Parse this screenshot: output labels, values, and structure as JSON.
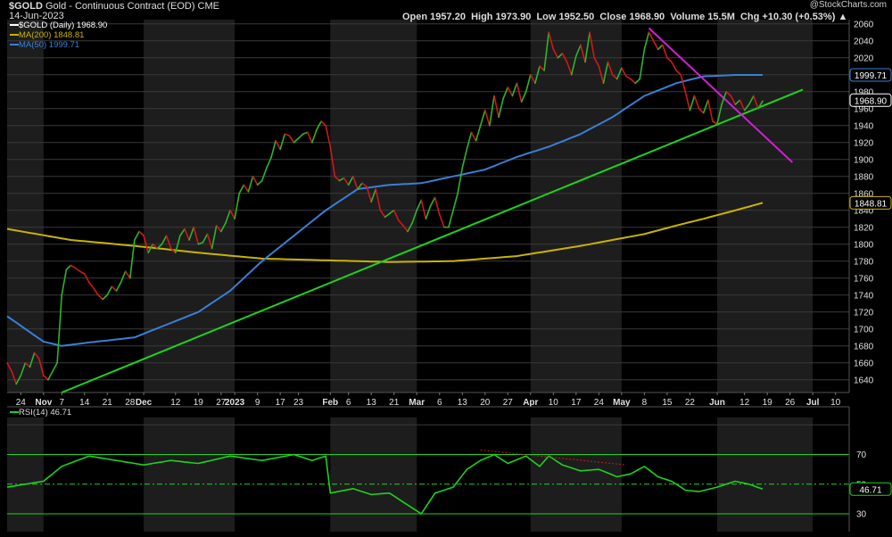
{
  "header": {
    "symbol": "$GOLD",
    "name": "Gold - Continuous Contract (EOD)",
    "exchange": "CME",
    "date": "14-Jun-2023",
    "open": "Open 1957.20",
    "high": "High 1973.90",
    "low": "Low 1952.50",
    "close": "Close 1968.90",
    "volume": "Volume 15.5M",
    "chg": "Chg +10.30 (+0.53%)",
    "chg_icon": "up-arrow-icon",
    "brand": "@StockCharts.com"
  },
  "legend": [
    {
      "text": "$GOLD (Daily) 1968.90",
      "color": "#ffffff"
    },
    {
      "text": "MA(200) 1848.81",
      "color": "#c8b400"
    },
    {
      "text": "MA(50) 1999.71",
      "color": "#3a7fd5"
    }
  ],
  "price_badges": {
    "ma50": "1999.71",
    "close": "1968.90",
    "ma200": "1848.81"
  },
  "rsi": {
    "label": "RSI(14) 46.71",
    "badge": "46.71",
    "ticks": [
      70,
      50,
      30
    ],
    "tick_labels": [
      "70",
      "50",
      "30"
    ]
  },
  "colors": {
    "ma200": "#c8b400",
    "ma50": "#3a7fd5",
    "support": "#1ed21e",
    "resistance": "#d21ed2",
    "up": "#2cb52c",
    "down": "#d01818"
  },
  "chart_data": {
    "type": "line",
    "title": "Gold - Continuous Contract (EOD)",
    "ylim": [
      1625,
      2065
    ],
    "y_ticks": [
      1640,
      1660,
      1680,
      1700,
      1720,
      1740,
      1760,
      1780,
      1800,
      1820,
      1840,
      1860,
      1880,
      1900,
      1920,
      1940,
      1960,
      1980,
      2000,
      2020,
      2040,
      2060
    ],
    "x_ticks": [
      {
        "label": "24",
        "i": 3
      },
      {
        "label": "Nov",
        "i": 8
      },
      {
        "label": "7",
        "i": 12
      },
      {
        "label": "14",
        "i": 17
      },
      {
        "label": "21",
        "i": 22
      },
      {
        "label": "28",
        "i": 27
      },
      {
        "label": "Dec",
        "i": 30
      },
      {
        "label": "12",
        "i": 37
      },
      {
        "label": "19",
        "i": 42
      },
      {
        "label": "27",
        "i": 47
      },
      {
        "label": "2023",
        "i": 50
      },
      {
        "label": "9",
        "i": 55
      },
      {
        "label": "17",
        "i": 60
      },
      {
        "label": "23",
        "i": 64
      },
      {
        "label": "Feb",
        "i": 71
      },
      {
        "label": "6",
        "i": 75
      },
      {
        "label": "13",
        "i": 80
      },
      {
        "label": "21",
        "i": 85
      },
      {
        "label": "Mar",
        "i": 90
      },
      {
        "label": "6",
        "i": 95
      },
      {
        "label": "13",
        "i": 100
      },
      {
        "label": "20",
        "i": 105
      },
      {
        "label": "27",
        "i": 110
      },
      {
        "label": "Apr",
        "i": 115
      },
      {
        "label": "10",
        "i": 120
      },
      {
        "label": "17",
        "i": 125
      },
      {
        "label": "24",
        "i": 130
      },
      {
        "label": "May",
        "i": 135
      },
      {
        "label": "8",
        "i": 140
      },
      {
        "label": "15",
        "i": 145
      },
      {
        "label": "22",
        "i": 150
      },
      {
        "label": "Jun",
        "i": 156
      },
      {
        "label": "12",
        "i": 162
      },
      {
        "label": "19",
        "i": 167
      },
      {
        "label": "26",
        "i": 172
      },
      {
        "label": "Jul",
        "i": 177
      },
      {
        "label": "10",
        "i": 182
      }
    ],
    "shade_bands": [
      [
        0,
        8
      ],
      [
        30,
        50
      ],
      [
        71,
        90
      ],
      [
        115,
        135
      ],
      [
        156,
        177
      ]
    ],
    "price_anchors": [
      [
        0,
        1660
      ],
      [
        1,
        1650
      ],
      [
        2,
        1635
      ],
      [
        3,
        1645
      ],
      [
        4,
        1660
      ],
      [
        5,
        1655
      ],
      [
        6,
        1672
      ],
      [
        7,
        1665
      ],
      [
        8,
        1645
      ],
      [
        9,
        1640
      ],
      [
        10,
        1650
      ],
      [
        11,
        1660
      ],
      [
        12,
        1740
      ],
      [
        13,
        1770
      ],
      [
        14,
        1775
      ],
      [
        15,
        1772
      ],
      [
        16,
        1768
      ],
      [
        17,
        1765
      ],
      [
        18,
        1755
      ],
      [
        19,
        1748
      ],
      [
        20,
        1740
      ],
      [
        21,
        1735
      ],
      [
        22,
        1740
      ],
      [
        23,
        1750
      ],
      [
        24,
        1745
      ],
      [
        25,
        1755
      ],
      [
        26,
        1768
      ],
      [
        27,
        1760
      ],
      [
        28,
        1805
      ],
      [
        29,
        1815
      ],
      [
        30,
        1810
      ],
      [
        31,
        1790
      ],
      [
        32,
        1800
      ],
      [
        33,
        1795
      ],
      [
        34,
        1800
      ],
      [
        35,
        1810
      ],
      [
        36,
        1795
      ],
      [
        37,
        1790
      ],
      [
        38,
        1810
      ],
      [
        39,
        1818
      ],
      [
        40,
        1805
      ],
      [
        41,
        1820
      ],
      [
        42,
        1800
      ],
      [
        43,
        1802
      ],
      [
        44,
        1812
      ],
      [
        45,
        1795
      ],
      [
        46,
        1822
      ],
      [
        47,
        1815
      ],
      [
        48,
        1825
      ],
      [
        49,
        1840
      ],
      [
        50,
        1830
      ],
      [
        51,
        1860
      ],
      [
        52,
        1870
      ],
      [
        53,
        1862
      ],
      [
        54,
        1880
      ],
      [
        55,
        1870
      ],
      [
        56,
        1875
      ],
      [
        57,
        1890
      ],
      [
        58,
        1902
      ],
      [
        59,
        1922
      ],
      [
        60,
        1912
      ],
      [
        61,
        1930
      ],
      [
        62,
        1928
      ],
      [
        63,
        1920
      ],
      [
        64,
        1925
      ],
      [
        65,
        1930
      ],
      [
        66,
        1932
      ],
      [
        67,
        1920
      ],
      [
        68,
        1935
      ],
      [
        69,
        1945
      ],
      [
        70,
        1940
      ],
      [
        71,
        1915
      ],
      [
        72,
        1880
      ],
      [
        73,
        1875
      ],
      [
        74,
        1878
      ],
      [
        75,
        1870
      ],
      [
        76,
        1880
      ],
      [
        77,
        1865
      ],
      [
        78,
        1872
      ],
      [
        79,
        1868
      ],
      [
        80,
        1850
      ],
      [
        81,
        1865
      ],
      [
        82,
        1840
      ],
      [
        83,
        1832
      ],
      [
        84,
        1836
      ],
      [
        85,
        1840
      ],
      [
        86,
        1828
      ],
      [
        87,
        1822
      ],
      [
        88,
        1815
      ],
      [
        89,
        1825
      ],
      [
        90,
        1840
      ],
      [
        91,
        1852
      ],
      [
        92,
        1830
      ],
      [
        93,
        1845
      ],
      [
        94,
        1855
      ],
      [
        95,
        1835
      ],
      [
        96,
        1820
      ],
      [
        97,
        1820
      ],
      [
        98,
        1840
      ],
      [
        99,
        1860
      ],
      [
        100,
        1890
      ],
      [
        101,
        1912
      ],
      [
        102,
        1932
      ],
      [
        103,
        1922
      ],
      [
        104,
        1940
      ],
      [
        105,
        1958
      ],
      [
        106,
        1940
      ],
      [
        107,
        1975
      ],
      [
        108,
        1950
      ],
      [
        109,
        1972
      ],
      [
        110,
        1985
      ],
      [
        111,
        1975
      ],
      [
        112,
        1990
      ],
      [
        113,
        1968
      ],
      [
        114,
        1980
      ],
      [
        115,
        2000
      ],
      [
        116,
        1990
      ],
      [
        117,
        2010
      ],
      [
        118,
        2005
      ],
      [
        119,
        2050
      ],
      [
        120,
        2030
      ],
      [
        121,
        2020
      ],
      [
        122,
        2025
      ],
      [
        123,
        2015
      ],
      [
        124,
        2000
      ],
      [
        125,
        2022
      ],
      [
        126,
        2035
      ],
      [
        127,
        2015
      ],
      [
        128,
        2050
      ],
      [
        129,
        2020
      ],
      [
        130,
        2010
      ],
      [
        131,
        1990
      ],
      [
        132,
        2015
      ],
      [
        133,
        2000
      ],
      [
        134,
        1995
      ],
      [
        135,
        2008
      ],
      [
        136,
        1998
      ],
      [
        137,
        1995
      ],
      [
        138,
        1990
      ],
      [
        139,
        1995
      ],
      [
        140,
        2030
      ],
      [
        141,
        2050
      ],
      [
        142,
        2040
      ],
      [
        143,
        2030
      ],
      [
        144,
        2035
      ],
      [
        145,
        2020
      ],
      [
        146,
        2015
      ],
      [
        147,
        2005
      ],
      [
        148,
        2000
      ],
      [
        149,
        1980
      ],
      [
        150,
        1958
      ],
      [
        151,
        1975
      ],
      [
        152,
        1960
      ],
      [
        153,
        1955
      ],
      [
        154,
        1970
      ],
      [
        155,
        1945
      ],
      [
        156,
        1942
      ],
      [
        157,
        1965
      ],
      [
        158,
        1980
      ],
      [
        159,
        1975
      ],
      [
        160,
        1965
      ],
      [
        161,
        1970
      ],
      [
        162,
        1958
      ],
      [
        163,
        1965
      ],
      [
        164,
        1975
      ],
      [
        165,
        1960
      ],
      [
        166,
        1968.9
      ]
    ],
    "ma50_anchors": [
      [
        0,
        1715
      ],
      [
        8,
        1685
      ],
      [
        12,
        1680
      ],
      [
        18,
        1684
      ],
      [
        28,
        1690
      ],
      [
        35,
        1705
      ],
      [
        42,
        1720
      ],
      [
        49,
        1745
      ],
      [
        56,
        1780
      ],
      [
        63,
        1810
      ],
      [
        70,
        1840
      ],
      [
        77,
        1865
      ],
      [
        84,
        1870
      ],
      [
        91,
        1872
      ],
      [
        98,
        1880
      ],
      [
        105,
        1888
      ],
      [
        112,
        1903
      ],
      [
        119,
        1915
      ],
      [
        126,
        1930
      ],
      [
        133,
        1950
      ],
      [
        140,
        1975
      ],
      [
        147,
        1990
      ],
      [
        153,
        1998
      ],
      [
        160,
        1999.71
      ],
      [
        166,
        1999.71
      ]
    ],
    "ma200_anchors": [
      [
        0,
        1818
      ],
      [
        14,
        1805
      ],
      [
        28,
        1798
      ],
      [
        42,
        1790
      ],
      [
        56,
        1783
      ],
      [
        70,
        1781
      ],
      [
        84,
        1779
      ],
      [
        98,
        1780
      ],
      [
        112,
        1786
      ],
      [
        126,
        1798
      ],
      [
        140,
        1812
      ],
      [
        147,
        1822
      ],
      [
        153,
        1830
      ],
      [
        160,
        1840
      ],
      [
        166,
        1848.81
      ]
    ],
    "support_line": [
      [
        12,
        1625
      ],
      [
        166,
        1953
      ]
    ],
    "resistance_line": [
      [
        141,
        2055
      ],
      [
        169,
        1905
      ]
    ],
    "rsi_ylim": [
      18,
      95
    ],
    "rsi_anchors": [
      [
        0,
        48
      ],
      [
        4,
        50
      ],
      [
        8,
        52
      ],
      [
        12,
        62
      ],
      [
        18,
        69
      ],
      [
        24,
        66
      ],
      [
        30,
        63
      ],
      [
        36,
        66
      ],
      [
        42,
        64
      ],
      [
        49,
        69
      ],
      [
        56,
        66
      ],
      [
        63,
        70
      ],
      [
        67,
        66
      ],
      [
        70,
        69
      ],
      [
        71,
        44
      ],
      [
        76,
        47
      ],
      [
        80,
        43
      ],
      [
        84,
        44
      ],
      [
        88,
        36
      ],
      [
        91,
        30
      ],
      [
        94,
        44
      ],
      [
        98,
        48
      ],
      [
        101,
        60
      ],
      [
        104,
        66
      ],
      [
        107,
        70
      ],
      [
        110,
        64
      ],
      [
        114,
        69
      ],
      [
        117,
        62
      ],
      [
        119,
        69
      ],
      [
        122,
        63
      ],
      [
        126,
        59
      ],
      [
        130,
        60
      ],
      [
        134,
        55
      ],
      [
        137,
        57
      ],
      [
        140,
        62
      ],
      [
        143,
        55
      ],
      [
        146,
        52
      ],
      [
        149,
        46
      ],
      [
        152,
        45
      ],
      [
        156,
        48
      ],
      [
        160,
        52
      ],
      [
        163,
        50
      ],
      [
        166,
        46.71
      ]
    ],
    "rsi_divergence": [
      [
        104,
        73
      ],
      [
        136,
        63
      ]
    ]
  }
}
